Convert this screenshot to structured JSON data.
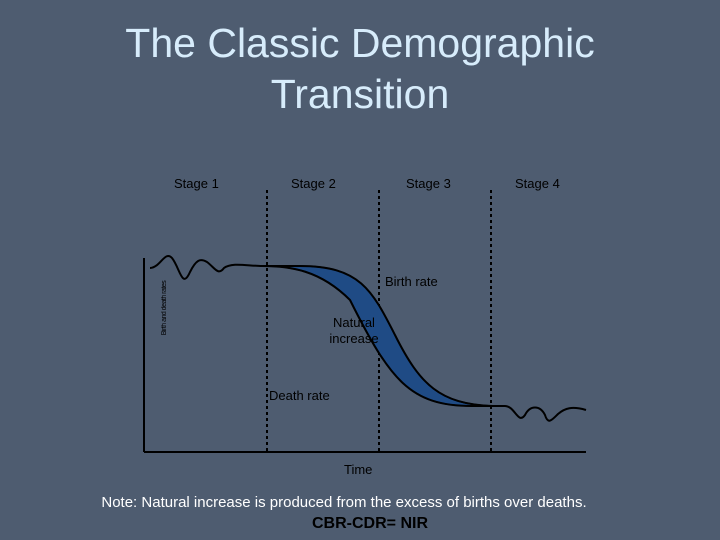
{
  "title": {
    "line1": "The Classic Demographic",
    "line2": "Transition"
  },
  "stages": [
    "Stage 1",
    "Stage 2",
    "Stage 3",
    "Stage 4"
  ],
  "labels": {
    "birth_rate": "Birth rate",
    "death_rate": "Death rate",
    "natural_increase_line1": "Natural",
    "natural_increase_line2": "increase",
    "time": "Time",
    "y_axis": "Birth and death rates"
  },
  "note": "Note: Natural increase is produced from the excess of births over deaths.",
  "formula": "CBR-CDR= NIR",
  "colors": {
    "background": "#4e5c70",
    "fill": "#1f4b85",
    "title": "#d7ecfb"
  }
}
